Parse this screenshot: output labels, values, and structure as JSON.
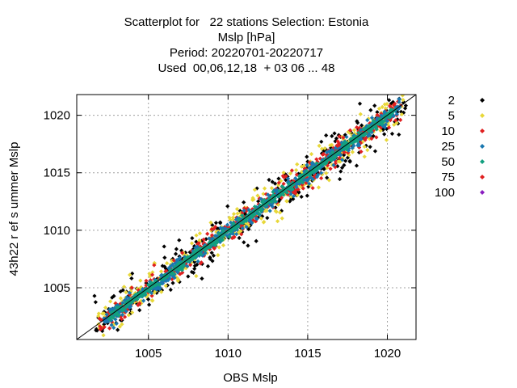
{
  "chart_data": {
    "type": "scatter",
    "title_lines": [
      "Scatterplot for   22 stations Selection: Estonia",
      "Mslp [hPa]",
      "Period: 20220701-20220717",
      "Used  00,06,12,18  + 03 06 ... 48"
    ],
    "xlabel": "OBS Mslp",
    "ylabel": "43h22 r ef s ummer Mslp",
    "xlim": [
      1000.5,
      1021.8
    ],
    "ylim": [
      1000.5,
      1021.8
    ],
    "xticks": [
      1005,
      1010,
      1015,
      1020
    ],
    "yticks": [
      1005,
      1010,
      1015,
      1020
    ],
    "grid": true,
    "diagonal_line": true,
    "legend_position": "right",
    "series": [
      {
        "name": "2",
        "color": "#000000",
        "spread": 0.85,
        "x_range": [
          1001.6,
          1021.2
        ]
      },
      {
        "name": "5",
        "color": "#e8d83a",
        "spread": 0.65,
        "x_range": [
          1001.8,
          1021.0
        ]
      },
      {
        "name": "10",
        "color": "#e02020",
        "spread": 0.45,
        "x_range": [
          1001.9,
          1020.9
        ]
      },
      {
        "name": "25",
        "color": "#1a78b0",
        "spread": 0.3,
        "x_range": [
          1002.2,
          1020.8
        ]
      },
      {
        "name": "50",
        "color": "#12a080",
        "spread": 0.16,
        "x_range": [
          1002.5,
          1020.5
        ]
      },
      {
        "name": "75",
        "color": "#e02020",
        "spread": 0.0,
        "x_range": [
          1003.0,
          1020.0
        ]
      },
      {
        "name": "100",
        "color": "#8a1ec0",
        "spread": 0.0,
        "x_range": [
          1003.0,
          1020.0
        ]
      }
    ]
  }
}
